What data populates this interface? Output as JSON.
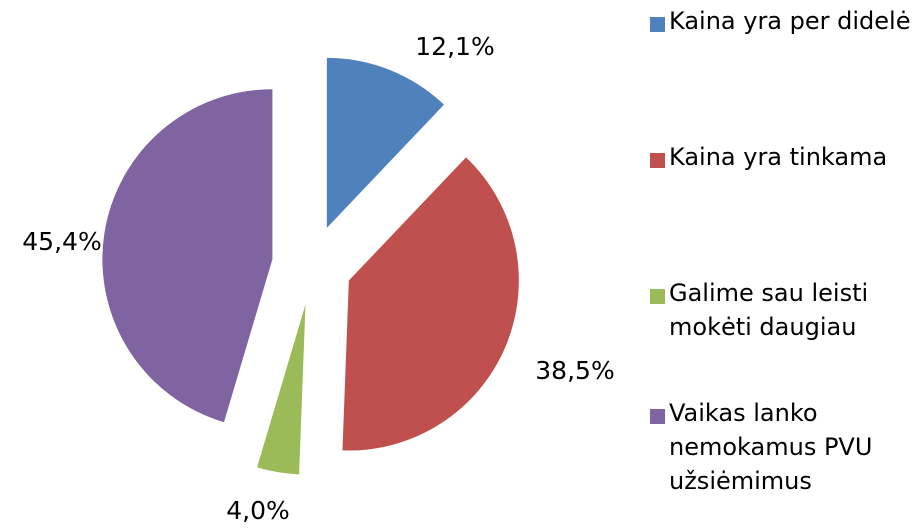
{
  "chart_data": {
    "type": "pie",
    "categories": [
      "Kaina yra per didelė",
      "Kaina yra tinkama",
      "Galime sau leisti mokėti daugiau",
      "Vaikas lanko nemokamus PVU užsiėmimus"
    ],
    "values": [
      12.1,
      38.5,
      4.0,
      45.4
    ],
    "value_labels": [
      "12,1%",
      "38,5%",
      "4,0%",
      "45,4%"
    ],
    "colors": [
      "#4f81bd",
      "#c0504d",
      "#9bbb59",
      "#8064a2"
    ],
    "exploded": true,
    "legend": "right"
  }
}
